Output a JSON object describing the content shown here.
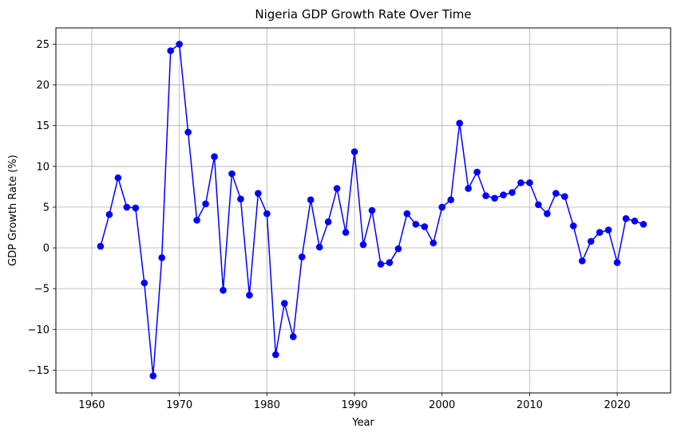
{
  "chart_data": {
    "type": "line",
    "title": "Nigeria GDP Growth Rate Over Time",
    "xlabel": "Year",
    "ylabel": "GDP Growth Rate (%)",
    "xlim": [
      1955.9,
      2026.1
    ],
    "ylim": [
      -17.8,
      27.0
    ],
    "xticks": [
      1960,
      1970,
      1980,
      1990,
      2000,
      2010,
      2020
    ],
    "yticks": [
      -15,
      -10,
      -5,
      0,
      5,
      10,
      15,
      20,
      25
    ],
    "grid": true,
    "marker": "circle",
    "color": "#0000ff",
    "x": [
      1961,
      1962,
      1963,
      1964,
      1965,
      1966,
      1967,
      1968,
      1969,
      1970,
      1971,
      1972,
      1973,
      1974,
      1975,
      1976,
      1977,
      1978,
      1979,
      1980,
      1981,
      1982,
      1983,
      1984,
      1985,
      1986,
      1987,
      1988,
      1989,
      1990,
      1991,
      1992,
      1993,
      1994,
      1995,
      1996,
      1997,
      1998,
      1999,
      2000,
      2001,
      2002,
      2003,
      2004,
      2005,
      2006,
      2007,
      2008,
      2009,
      2010,
      2011,
      2012,
      2013,
      2014,
      2015,
      2016,
      2017,
      2018,
      2019,
      2020,
      2021,
      2022,
      2023
    ],
    "y": [
      0.2,
      4.1,
      8.6,
      5.0,
      4.9,
      -4.3,
      -15.7,
      -1.2,
      24.2,
      25.0,
      14.2,
      3.4,
      5.4,
      11.2,
      -5.2,
      9.1,
      6.0,
      -5.8,
      6.7,
      4.2,
      -13.1,
      -6.8,
      -10.9,
      -1.1,
      5.9,
      0.1,
      3.2,
      7.3,
      1.9,
      11.8,
      0.4,
      4.6,
      -2.0,
      -1.8,
      -0.1,
      4.2,
      2.9,
      2.6,
      0.6,
      5.0,
      5.9,
      15.3,
      7.3,
      9.3,
      6.4,
      6.1,
      6.5,
      6.8,
      8.0,
      8.0,
      5.3,
      4.2,
      6.7,
      6.3,
      2.7,
      -1.6,
      0.8,
      1.9,
      2.2,
      -1.8,
      3.6,
      3.3,
      2.9
    ]
  }
}
